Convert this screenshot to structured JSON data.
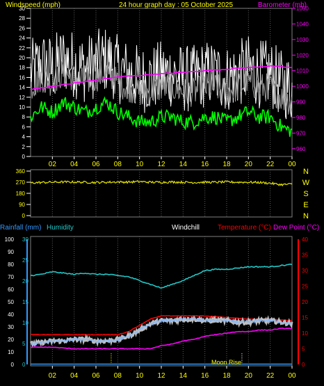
{
  "header": {
    "left_label": "Windspeed (mph)",
    "title": "24 hour graph day : 05 October 2025",
    "right_label": "Barometer (mb)"
  },
  "colors": {
    "background": "#000000",
    "plot_border": "#808080",
    "grid": "#606060",
    "wind_gust": "#ffffff",
    "wind_avg": "#a0a0a0",
    "wind_low": "#00ff00",
    "barometer": "#ff00ff",
    "direction": "#e6e600",
    "humidity": "#22c7c7",
    "temperature": "#ff0000",
    "dewpoint": "#ff00ff",
    "windchill": "#ffffff",
    "rainfall_axis": "#3399ff",
    "temp_axis": "#ff0000",
    "yellow_text": "#ffff00",
    "label_blue": "#3399ff"
  },
  "x_tick_labels": [
    "02",
    "04",
    "06",
    "08",
    "10",
    "12",
    "14",
    "16",
    "18",
    "20",
    "22",
    "00"
  ],
  "wind_panel": {
    "left_ticks": [
      "30",
      "28",
      "26",
      "24",
      "22",
      "20",
      "18",
      "16",
      "14",
      "12",
      "10",
      "8",
      "6",
      "4",
      "2",
      "0"
    ],
    "right_ticks": [
      "1050",
      "1040",
      "1030",
      "1020",
      "1010",
      "1000",
      "990",
      "980",
      "970",
      "960"
    ]
  },
  "dir_panel": {
    "left_ticks": [
      "360",
      "270",
      "180",
      "90",
      "0"
    ],
    "compass": [
      "N",
      "W",
      "S",
      "E",
      "N"
    ]
  },
  "temp_panel": {
    "legend": {
      "rainfall": "Rainfall (mm)",
      "humidity": "Humidity",
      "windchill": "Windchill",
      "temperature": "Temperature (°C)",
      "dewpoint": "Dew Point (°C)"
    },
    "humidity_ticks": [
      "100",
      "90",
      "80",
      "70",
      "60",
      "50",
      "40",
      "30",
      "20",
      "10",
      "0"
    ],
    "rain_ticks": [
      "30",
      "25",
      "20",
      "15",
      "10",
      "5",
      "0"
    ],
    "temp_ticks": [
      "40",
      "35",
      "30",
      "25",
      "20",
      "15",
      "10",
      "5",
      "0"
    ],
    "moon_label": "Moon Rise",
    "events": [
      {
        "hour": 7.4,
        "color": "#ffff00"
      },
      {
        "hour": 19.4,
        "color": "#ffffff"
      }
    ]
  },
  "chart_data": [
    {
      "type": "line",
      "title": "24 hour graph day : 05 October 2025",
      "ylabel": "Windspeed (mph)",
      "y2label": "Barometer (mb)",
      "x_unit": "hour",
      "ylim": [
        0,
        30
      ],
      "y2lim": [
        955,
        1050
      ],
      "series": [
        {
          "name": "Windspeed",
          "axis": "left",
          "x": [
            0,
            1,
            2,
            3,
            4,
            5,
            6,
            7,
            8,
            9,
            10,
            11,
            12,
            13,
            14,
            15,
            16,
            17,
            18,
            19,
            20,
            21,
            22,
            23,
            24
          ],
          "values": [
            16,
            18,
            17,
            19,
            18,
            17,
            18,
            19,
            17,
            16,
            15,
            15,
            16,
            16,
            15,
            15,
            16,
            16,
            15,
            16,
            17,
            16,
            16,
            14,
            13
          ]
        },
        {
          "name": "Barometer",
          "axis": "right",
          "x": [
            0,
            2,
            4,
            6,
            8,
            10,
            12,
            14,
            16,
            18,
            20,
            22,
            24
          ],
          "values": [
            998,
            1000,
            1002,
            1004,
            1006,
            1007,
            1008,
            1009,
            1010,
            1011,
            1012,
            1013,
            1012
          ]
        }
      ]
    },
    {
      "type": "line",
      "title": "",
      "x_unit": "hour",
      "ylim": [
        0,
        360
      ],
      "series": [
        {
          "name": "",
          "x": [
            0,
            1,
            2,
            3,
            4,
            5,
            6,
            7,
            8,
            9,
            10,
            11,
            12,
            13,
            14,
            15,
            16,
            17,
            18,
            19,
            20,
            21,
            22,
            23,
            24
          ],
          "values": [
            265,
            268,
            270,
            272,
            271,
            270,
            268,
            270,
            272,
            271,
            275,
            270,
            270,
            272,
            270,
            268,
            270,
            270,
            272,
            270,
            270,
            268,
            262,
            250,
            255
          ]
        }
      ]
    },
    {
      "type": "line",
      "title": "",
      "x_unit": "hour",
      "ylim": [
        0,
        100
      ],
      "y2lim": [
        0,
        40
      ],
      "series": [
        {
          "name": "Humidity",
          "axis": "humidity",
          "x": [
            0,
            1,
            2,
            3,
            4,
            5,
            6,
            7,
            8,
            9,
            10,
            11,
            12,
            13,
            14,
            15,
            16,
            17,
            18,
            19,
            20,
            21,
            22,
            23,
            24
          ],
          "values": [
            71,
            72,
            74,
            73,
            72,
            73,
            72,
            72,
            71,
            70,
            67,
            64,
            61,
            64,
            67,
            71,
            75,
            76,
            76,
            77,
            78,
            78,
            78,
            79,
            80
          ]
        },
        {
          "name": "Temperature",
          "axis": "temperature",
          "x": [
            0,
            2,
            4,
            6,
            8,
            9,
            10,
            11,
            12,
            13,
            14,
            16,
            18,
            20,
            22,
            24
          ],
          "values": [
            9.5,
            9.5,
            9.5,
            9.5,
            9.5,
            10.5,
            12.5,
            14.5,
            15.5,
            15.5,
            15.5,
            15.5,
            15,
            14.5,
            14.5,
            14
          ]
        },
        {
          "name": "Windchill",
          "axis": "temperature",
          "x": [
            0,
            1,
            2,
            3,
            4,
            5,
            6,
            7,
            8,
            9,
            10,
            11,
            12,
            13,
            14,
            15,
            16,
            17,
            18,
            19,
            20,
            21,
            22,
            23,
            24
          ],
          "values": [
            6.5,
            7,
            7.5,
            7.5,
            8,
            8,
            7.5,
            7.5,
            8,
            9,
            11,
            13,
            14,
            14,
            14.5,
            14.5,
            14,
            14,
            14,
            13.5,
            13.5,
            14,
            14,
            13.5,
            13
          ]
        },
        {
          "name": "Dew Point",
          "axis": "temperature",
          "x": [
            0,
            2,
            4,
            6,
            8,
            10,
            11,
            12,
            13,
            14,
            15,
            16,
            17,
            18,
            19,
            20,
            21,
            22,
            23,
            24
          ],
          "values": [
            5.5,
            5.5,
            5,
            5,
            5,
            5,
            5,
            6,
            6.5,
            7.5,
            8,
            9,
            9.5,
            10,
            10.5,
            10.5,
            11,
            11,
            11.5,
            11.5
          ]
        },
        {
          "name": "Rainfall",
          "axis": "rain",
          "x": [
            0,
            24
          ],
          "values": [
            0,
            0
          ]
        }
      ]
    }
  ]
}
